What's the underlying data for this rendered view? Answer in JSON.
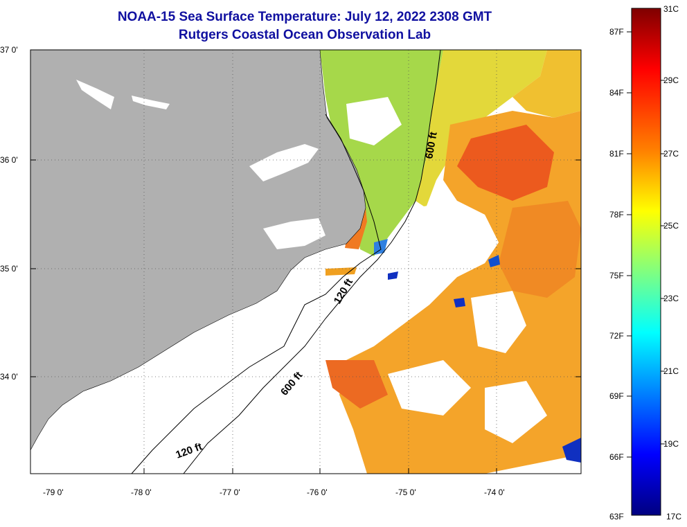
{
  "title": {
    "line1": "NOAA-15 Sea Surface Temperature:  July 12, 2022 2308 GMT",
    "line2": "Rutgers Coastal Ocean Observation Lab"
  },
  "map": {
    "lat_labels": [
      "37 0'",
      "36 0'",
      "35 0'",
      "34 0'"
    ],
    "lon_labels": [
      "-79 0'",
      "-78 0'",
      "-77 0'",
      "-76 0'",
      "-75 0'",
      "-74 0'"
    ],
    "land_color": "#b0b0b0",
    "grid": "dotted",
    "contour_labels": [
      "600 ft",
      "120 ft",
      "600 ft",
      "120 ft"
    ]
  },
  "colorbar": {
    "fahrenheit_labels": [
      "87F",
      "84F",
      "81F",
      "78F",
      "75F",
      "72F",
      "69F",
      "66F",
      "63F"
    ],
    "celsius_labels": [
      "31C",
      "29C",
      "27C",
      "25C",
      "23C",
      "21C",
      "19C",
      "17C"
    ],
    "colors": [
      "#7f0000",
      "#ff0000",
      "#ff8000",
      "#ffff00",
      "#80ff80",
      "#00ffff",
      "#0080ff",
      "#0000ff",
      "#000080"
    ]
  }
}
